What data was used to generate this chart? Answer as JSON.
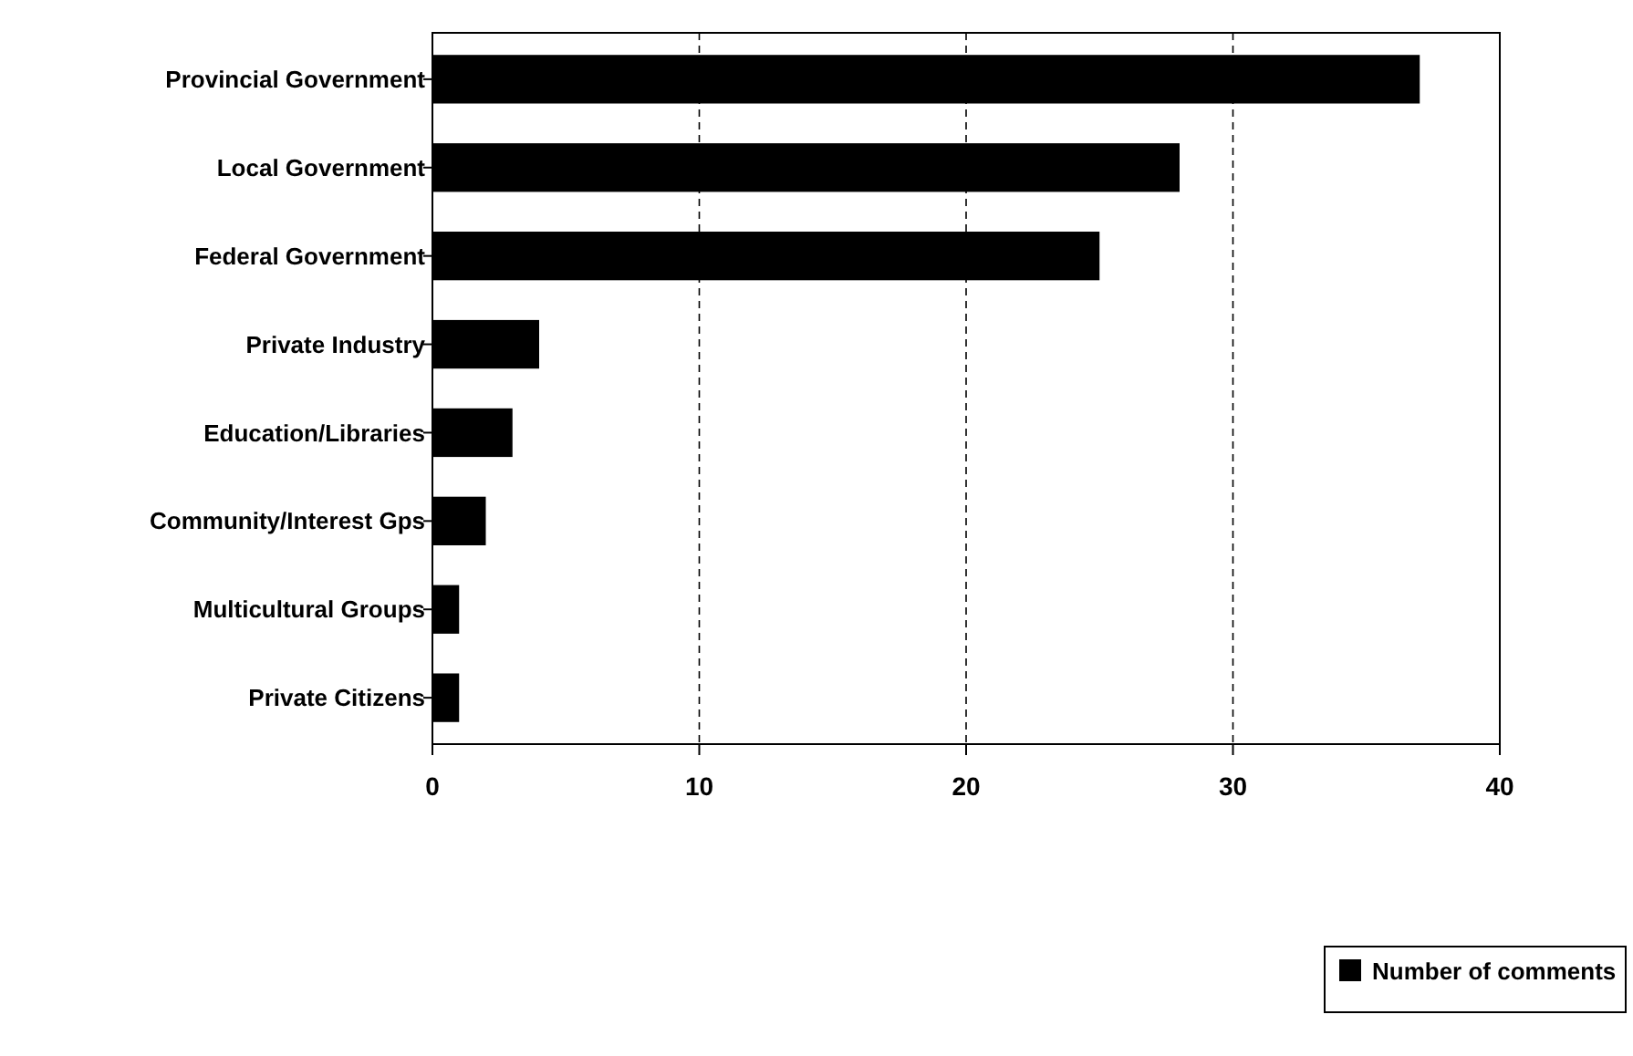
{
  "chart_data": {
    "type": "bar",
    "orientation": "horizontal",
    "categories": [
      "Provincial Government",
      "Local Government",
      "Federal Government",
      "Private Industry",
      "Education/Libraries",
      "Community/Interest Gps",
      "Multicultural Groups",
      "Private Citizens"
    ],
    "series": [
      {
        "name": "Number of comments",
        "color": "#000000",
        "values": [
          37,
          28,
          25,
          4,
          3,
          2,
          1,
          1
        ]
      }
    ],
    "xlim": [
      0,
      40
    ],
    "xticks": [
      0,
      10,
      20,
      30,
      40
    ],
    "grid": "x",
    "legend": "bottom right"
  }
}
